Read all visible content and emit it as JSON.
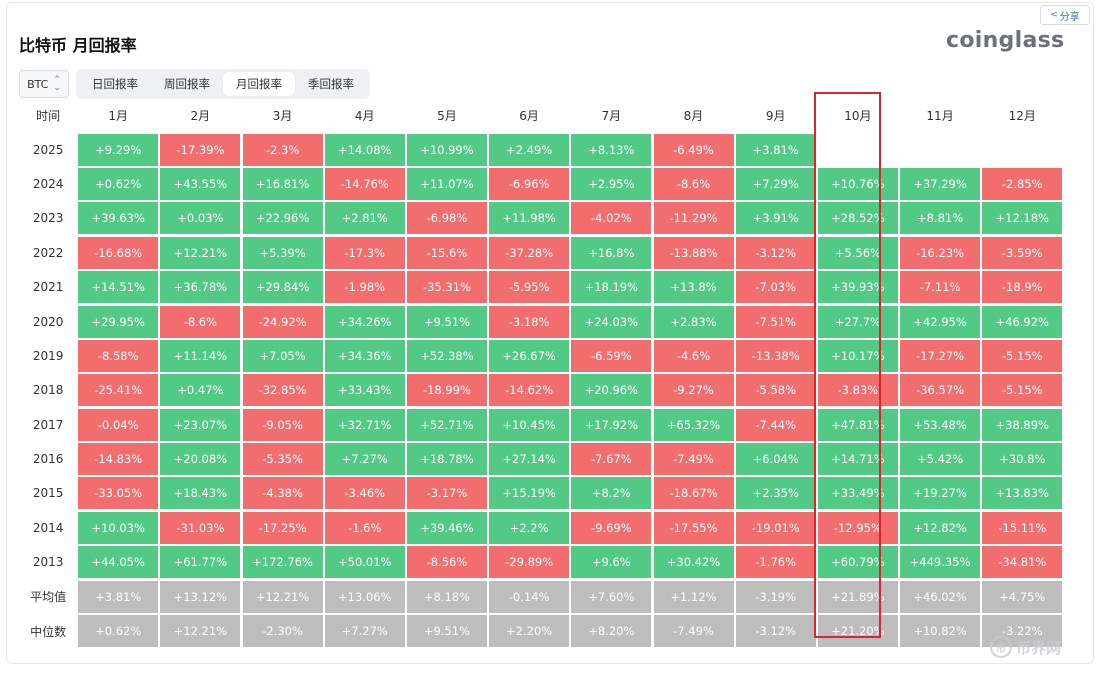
{
  "header": {
    "title": "比特币 月回报率",
    "logo": "coinglass",
    "share_label": "分享"
  },
  "controls": {
    "asset_select": "BTC",
    "tabs": [
      "日回报率",
      "周回报率",
      "月回报率",
      "季回报率"
    ],
    "active_tab": "月回报率"
  },
  "watermark": "币界网",
  "chart_data": {
    "type": "table",
    "title": "比特币 月回报率",
    "row_header": "时间",
    "columns": [
      "1月",
      "2月",
      "3月",
      "4月",
      "5月",
      "6月",
      "7月",
      "8月",
      "9月",
      "10月",
      "11月",
      "12月"
    ],
    "highlighted_column": "10月",
    "rows": [
      {
        "label": "2025",
        "values": [
          "+9.29%",
          "-17.39%",
          "-2.3%",
          "+14.08%",
          "+10.99%",
          "+2.49%",
          "+8.13%",
          "-6.49%",
          "+3.81%",
          "",
          "",
          ""
        ]
      },
      {
        "label": "2024",
        "values": [
          "+0.62%",
          "+43.55%",
          "+16.81%",
          "-14.76%",
          "+11.07%",
          "-6.96%",
          "+2.95%",
          "-8.6%",
          "+7.29%",
          "+10.76%",
          "+37.29%",
          "-2.85%"
        ]
      },
      {
        "label": "2023",
        "values": [
          "+39.63%",
          "+0.03%",
          "+22.96%",
          "+2.81%",
          "-6.98%",
          "+11.98%",
          "-4.02%",
          "-11.29%",
          "+3.91%",
          "+28.52%",
          "+8.81%",
          "+12.18%"
        ]
      },
      {
        "label": "2022",
        "values": [
          "-16.68%",
          "+12.21%",
          "+5.39%",
          "-17.3%",
          "-15.6%",
          "-37.28%",
          "+16.8%",
          "-13.88%",
          "-3.12%",
          "+5.56%",
          "-16.23%",
          "-3.59%"
        ]
      },
      {
        "label": "2021",
        "values": [
          "+14.51%",
          "+36.78%",
          "+29.84%",
          "-1.98%",
          "-35.31%",
          "-5.95%",
          "+18.19%",
          "+13.8%",
          "-7.03%",
          "+39.93%",
          "-7.11%",
          "-18.9%"
        ]
      },
      {
        "label": "2020",
        "values": [
          "+29.95%",
          "-8.6%",
          "-24.92%",
          "+34.26%",
          "+9.51%",
          "-3.18%",
          "+24.03%",
          "+2.83%",
          "-7.51%",
          "+27.7%",
          "+42.95%",
          "+46.92%"
        ]
      },
      {
        "label": "2019",
        "values": [
          "-8.58%",
          "+11.14%",
          "+7.05%",
          "+34.36%",
          "+52.38%",
          "+26.67%",
          "-6.59%",
          "-4.6%",
          "-13.38%",
          "+10.17%",
          "-17.27%",
          "-5.15%"
        ]
      },
      {
        "label": "2018",
        "values": [
          "-25.41%",
          "+0.47%",
          "-32.85%",
          "+33.43%",
          "-18.99%",
          "-14.62%",
          "+20.96%",
          "-9.27%",
          "-5.58%",
          "-3.83%",
          "-36.57%",
          "-5.15%"
        ]
      },
      {
        "label": "2017",
        "values": [
          "-0.04%",
          "+23.07%",
          "-9.05%",
          "+32.71%",
          "+52.71%",
          "+10.45%",
          "+17.92%",
          "+65.32%",
          "-7.44%",
          "+47.81%",
          "+53.48%",
          "+38.89%"
        ]
      },
      {
        "label": "2016",
        "values": [
          "-14.83%",
          "+20.08%",
          "-5.35%",
          "+7.27%",
          "+18.78%",
          "+27.14%",
          "-7.67%",
          "-7.49%",
          "+6.04%",
          "+14.71%",
          "+5.42%",
          "+30.8%"
        ]
      },
      {
        "label": "2015",
        "values": [
          "-33.05%",
          "+18.43%",
          "-4.38%",
          "-3.46%",
          "-3.17%",
          "+15.19%",
          "+8.2%",
          "-18.67%",
          "+2.35%",
          "+33.49%",
          "+19.27%",
          "+13.83%"
        ]
      },
      {
        "label": "2014",
        "values": [
          "+10.03%",
          "-31.03%",
          "-17.25%",
          "-1.6%",
          "+39.46%",
          "+2.2%",
          "-9.69%",
          "-17.55%",
          "-19.01%",
          "-12.95%",
          "+12.82%",
          "-15.11%"
        ]
      },
      {
        "label": "2013",
        "values": [
          "+44.05%",
          "+61.77%",
          "+172.76%",
          "+50.01%",
          "-8.56%",
          "-29.89%",
          "+9.6%",
          "+30.42%",
          "-1.76%",
          "+60.79%",
          "+449.35%",
          "-34.81%"
        ]
      }
    ],
    "summary_rows": [
      {
        "label": "平均值",
        "values": [
          "+3.81%",
          "+13.12%",
          "+12.21%",
          "+13.06%",
          "+8.18%",
          "-0.14%",
          "+7.60%",
          "+1.12%",
          "-3.19%",
          "+21.89%",
          "+46.02%",
          "+4.75%"
        ]
      },
      {
        "label": "中位数",
        "values": [
          "+0.62%",
          "+12.21%",
          "-2.30%",
          "+7.27%",
          "+9.51%",
          "+2.20%",
          "+8.20%",
          "-7.49%",
          "-3.12%",
          "+21.20%",
          "+10.82%",
          "-3.22%"
        ]
      }
    ],
    "colors": {
      "positive": "#52c985",
      "negative": "#f26d6d",
      "summary": "#bdbdbd",
      "highlight": "#d9262b"
    }
  }
}
